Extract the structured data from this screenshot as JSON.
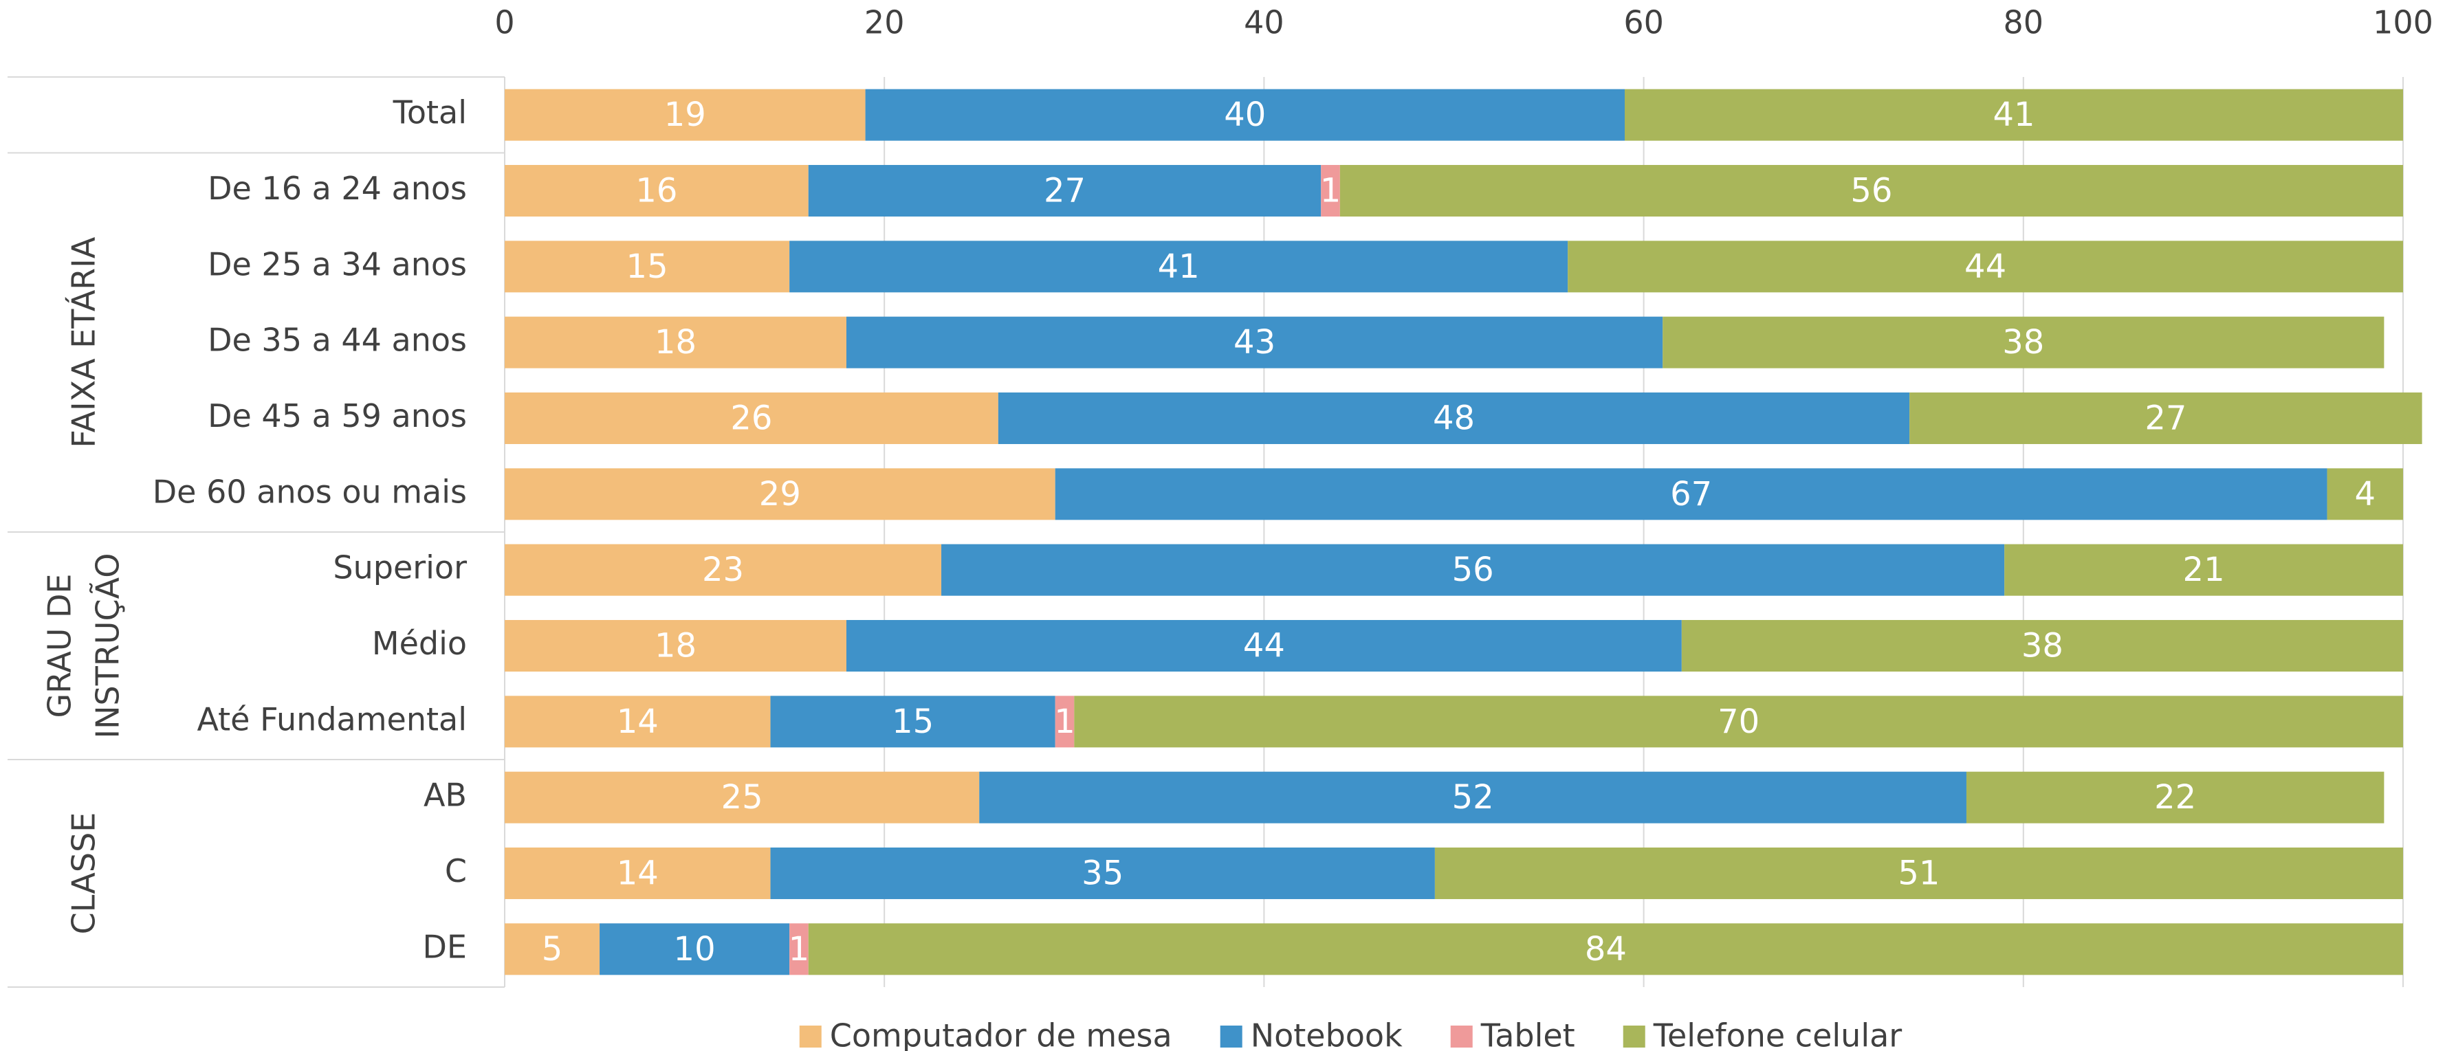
{
  "chart_data": {
    "type": "stacked-bar-horizontal",
    "groups": [
      {
        "label": null,
        "categories": [
          "Total"
        ]
      },
      {
        "label": [
          "FAIXA ETÁRIA"
        ],
        "categories": [
          "De 16 a 24 anos",
          "De 25 a 34 anos",
          "De 35 a 44 anos",
          "De 45 a 59 anos",
          "De 60 anos ou mais"
        ]
      },
      {
        "label": [
          "GRAU DE",
          "INSTRUÇÃO"
        ],
        "categories": [
          "Superior",
          "Médio",
          "Até Fundamental"
        ]
      },
      {
        "label": [
          "CLASSE"
        ],
        "categories": [
          "AB",
          "C",
          "DE"
        ]
      }
    ],
    "series": [
      {
        "name": "Computador de mesa",
        "color": "#f3be7a",
        "values": [
          19,
          16,
          15,
          18,
          26,
          29,
          23,
          18,
          14,
          25,
          14,
          5
        ]
      },
      {
        "name": "Notebook",
        "color": "#3f92c9",
        "values": [
          40,
          27,
          41,
          43,
          48,
          67,
          56,
          44,
          15,
          52,
          35,
          10
        ]
      },
      {
        "name": "Tablet",
        "color": "#ef9a9a",
        "values": [
          null,
          1,
          null,
          null,
          null,
          null,
          null,
          null,
          1,
          null,
          null,
          1
        ]
      },
      {
        "name": "Telefone celular",
        "color": "#a9b65a",
        "values": [
          41,
          56,
          44,
          38,
          27,
          4,
          21,
          38,
          70,
          22,
          51,
          84
        ]
      }
    ],
    "xlim": [
      0,
      100
    ],
    "xticks": [
      0,
      20,
      40,
      60,
      80,
      100
    ],
    "grid": true,
    "legend": "bottom"
  }
}
